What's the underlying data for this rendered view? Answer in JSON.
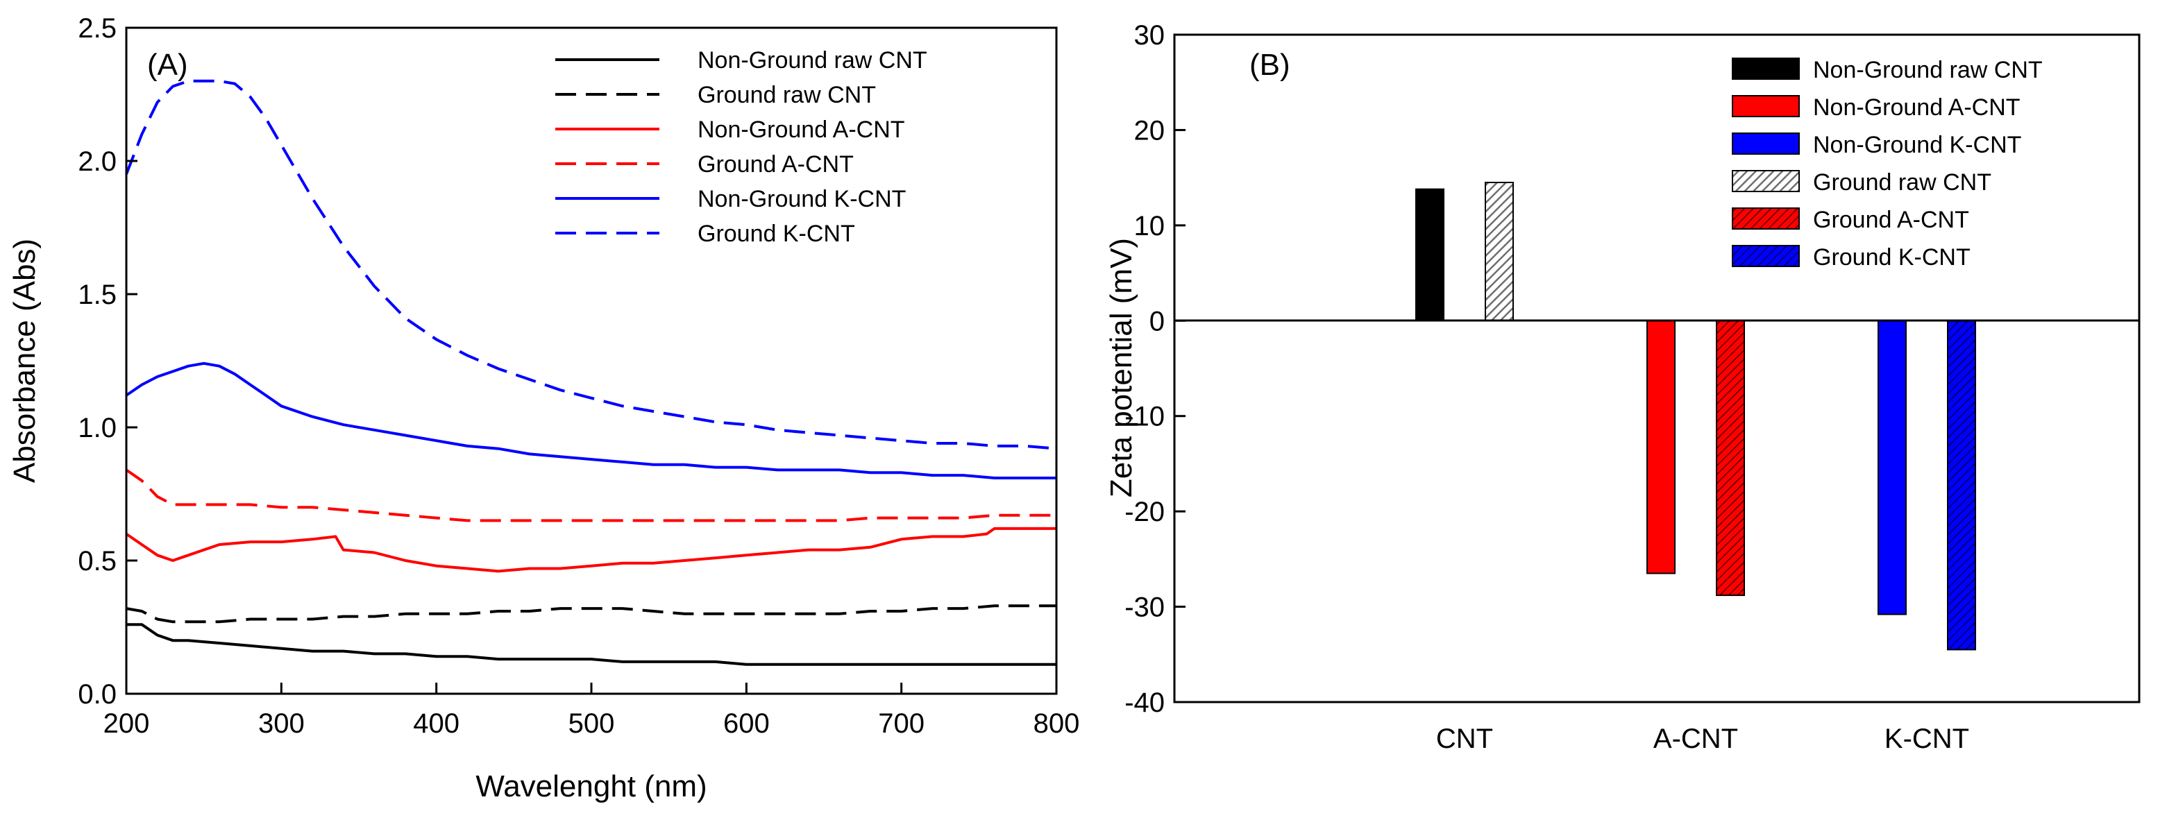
{
  "chart_data": [
    {
      "type": "line",
      "panel_label": "(A)",
      "title": "",
      "xlabel": "Wavelenght (nm)",
      "ylabel": "Absorbance (Abs)",
      "xlim": [
        200,
        800
      ],
      "ylim": [
        0.0,
        2.5
      ],
      "xticks": [
        200,
        300,
        400,
        500,
        600,
        700,
        800
      ],
      "yticks": [
        "0.0",
        "0.5",
        "1.0",
        "1.5",
        "2.0",
        "2.5"
      ],
      "grid": false,
      "legend_position": "top-right",
      "series": [
        {
          "name": "Non-Ground raw CNT",
          "color": "#000000",
          "style": "solid",
          "x": [
            200,
            210,
            220,
            230,
            240,
            260,
            280,
            300,
            320,
            340,
            360,
            380,
            400,
            420,
            440,
            460,
            480,
            500,
            520,
            540,
            560,
            580,
            600,
            620,
            640,
            660,
            680,
            700,
            720,
            740,
            760,
            780,
            800
          ],
          "y": [
            0.26,
            0.26,
            0.22,
            0.2,
            0.2,
            0.19,
            0.18,
            0.17,
            0.16,
            0.16,
            0.15,
            0.15,
            0.14,
            0.14,
            0.13,
            0.13,
            0.13,
            0.13,
            0.12,
            0.12,
            0.12,
            0.12,
            0.11,
            0.11,
            0.11,
            0.11,
            0.11,
            0.11,
            0.11,
            0.11,
            0.11,
            0.11,
            0.11
          ]
        },
        {
          "name": "Ground raw CNT",
          "color": "#000000",
          "style": "dashed",
          "x": [
            200,
            210,
            220,
            230,
            240,
            260,
            280,
            300,
            320,
            340,
            360,
            380,
            400,
            420,
            440,
            460,
            480,
            500,
            520,
            540,
            560,
            580,
            600,
            620,
            640,
            660,
            680,
            700,
            720,
            740,
            760,
            780,
            800
          ],
          "y": [
            0.32,
            0.31,
            0.28,
            0.27,
            0.27,
            0.27,
            0.28,
            0.28,
            0.28,
            0.29,
            0.29,
            0.3,
            0.3,
            0.3,
            0.31,
            0.31,
            0.32,
            0.32,
            0.32,
            0.31,
            0.3,
            0.3,
            0.3,
            0.3,
            0.3,
            0.3,
            0.31,
            0.31,
            0.32,
            0.32,
            0.33,
            0.33,
            0.33
          ]
        },
        {
          "name": "Non-Ground A-CNT",
          "color": "#ff0000",
          "style": "solid",
          "x": [
            200,
            210,
            220,
            230,
            240,
            260,
            280,
            300,
            320,
            335,
            340,
            360,
            380,
            400,
            420,
            440,
            460,
            480,
            500,
            520,
            540,
            560,
            580,
            600,
            620,
            640,
            660,
            680,
            700,
            720,
            740,
            755,
            760,
            780,
            800
          ],
          "y": [
            0.6,
            0.56,
            0.52,
            0.5,
            0.52,
            0.56,
            0.57,
            0.57,
            0.58,
            0.59,
            0.54,
            0.53,
            0.5,
            0.48,
            0.47,
            0.46,
            0.47,
            0.47,
            0.48,
            0.49,
            0.49,
            0.5,
            0.51,
            0.52,
            0.53,
            0.54,
            0.54,
            0.55,
            0.58,
            0.59,
            0.59,
            0.6,
            0.62,
            0.62,
            0.62
          ]
        },
        {
          "name": "Ground A-CNT",
          "color": "#ff0000",
          "style": "dashed",
          "x": [
            200,
            210,
            220,
            230,
            240,
            260,
            280,
            300,
            320,
            340,
            360,
            380,
            400,
            420,
            440,
            460,
            480,
            500,
            520,
            540,
            560,
            580,
            600,
            620,
            640,
            660,
            680,
            700,
            720,
            740,
            760,
            780,
            800
          ],
          "y": [
            0.84,
            0.8,
            0.74,
            0.71,
            0.71,
            0.71,
            0.71,
            0.7,
            0.7,
            0.69,
            0.68,
            0.67,
            0.66,
            0.65,
            0.65,
            0.65,
            0.65,
            0.65,
            0.65,
            0.65,
            0.65,
            0.65,
            0.65,
            0.65,
            0.65,
            0.65,
            0.66,
            0.66,
            0.66,
            0.66,
            0.67,
            0.67,
            0.67
          ]
        },
        {
          "name": "Non-Ground K-CNT",
          "color": "#0000ff",
          "style": "solid",
          "x": [
            200,
            210,
            220,
            230,
            240,
            250,
            260,
            270,
            280,
            290,
            300,
            320,
            340,
            360,
            380,
            400,
            420,
            440,
            460,
            480,
            500,
            520,
            540,
            560,
            580,
            600,
            620,
            640,
            660,
            680,
            700,
            720,
            740,
            760,
            780,
            800
          ],
          "y": [
            1.12,
            1.16,
            1.19,
            1.21,
            1.23,
            1.24,
            1.23,
            1.2,
            1.16,
            1.12,
            1.08,
            1.04,
            1.01,
            0.99,
            0.97,
            0.95,
            0.93,
            0.92,
            0.9,
            0.89,
            0.88,
            0.87,
            0.86,
            0.86,
            0.85,
            0.85,
            0.84,
            0.84,
            0.84,
            0.83,
            0.83,
            0.82,
            0.82,
            0.81,
            0.81,
            0.81
          ]
        },
        {
          "name": "Ground K-CNT",
          "color": "#0000ff",
          "style": "dashed",
          "x": [
            200,
            210,
            220,
            230,
            240,
            250,
            260,
            270,
            280,
            290,
            300,
            320,
            340,
            360,
            380,
            400,
            420,
            440,
            460,
            480,
            500,
            520,
            540,
            560,
            580,
            600,
            620,
            640,
            660,
            680,
            700,
            720,
            740,
            760,
            780,
            800
          ],
          "y": [
            1.95,
            2.1,
            2.22,
            2.28,
            2.3,
            2.3,
            2.3,
            2.29,
            2.24,
            2.16,
            2.06,
            1.86,
            1.68,
            1.53,
            1.41,
            1.33,
            1.27,
            1.22,
            1.18,
            1.14,
            1.11,
            1.08,
            1.06,
            1.04,
            1.02,
            1.01,
            0.99,
            0.98,
            0.97,
            0.96,
            0.95,
            0.94,
            0.94,
            0.93,
            0.93,
            0.92
          ]
        }
      ]
    },
    {
      "type": "bar",
      "panel_label": "(B)",
      "title": "",
      "xlabel": "",
      "ylabel": "Zeta potential (mV)",
      "ylim": [
        -40,
        30
      ],
      "yticks": [
        "30",
        "20",
        "10",
        "0",
        "-10",
        "-20",
        "-30",
        "-40"
      ],
      "grid": false,
      "legend_position": "top-right",
      "categories": [
        "CNT",
        "A-CNT",
        "K-CNT"
      ],
      "series": [
        {
          "name": "Non-Ground raw CNT",
          "color": "#000000",
          "pattern": "solid",
          "group": 0,
          "slot": 0,
          "value": 13.8
        },
        {
          "name": "Non-Ground A-CNT",
          "color": "#ff0000",
          "pattern": "solid",
          "group": 1,
          "slot": 0,
          "value": -26.5
        },
        {
          "name": "Non-Ground K-CNT",
          "color": "#0000ff",
          "pattern": "solid",
          "group": 2,
          "slot": 0,
          "value": -30.8
        },
        {
          "name": "Ground raw CNT",
          "color": "#9a9a9a",
          "pattern": "hatch",
          "group": 0,
          "slot": 1,
          "value": 14.5
        },
        {
          "name": "Ground A-CNT",
          "color": "#ff0000",
          "pattern": "hatch",
          "group": 1,
          "slot": 1,
          "value": -28.8
        },
        {
          "name": "Ground K-CNT",
          "color": "#0000ff",
          "pattern": "hatch",
          "group": 2,
          "slot": 1,
          "value": -34.5
        }
      ]
    }
  ]
}
